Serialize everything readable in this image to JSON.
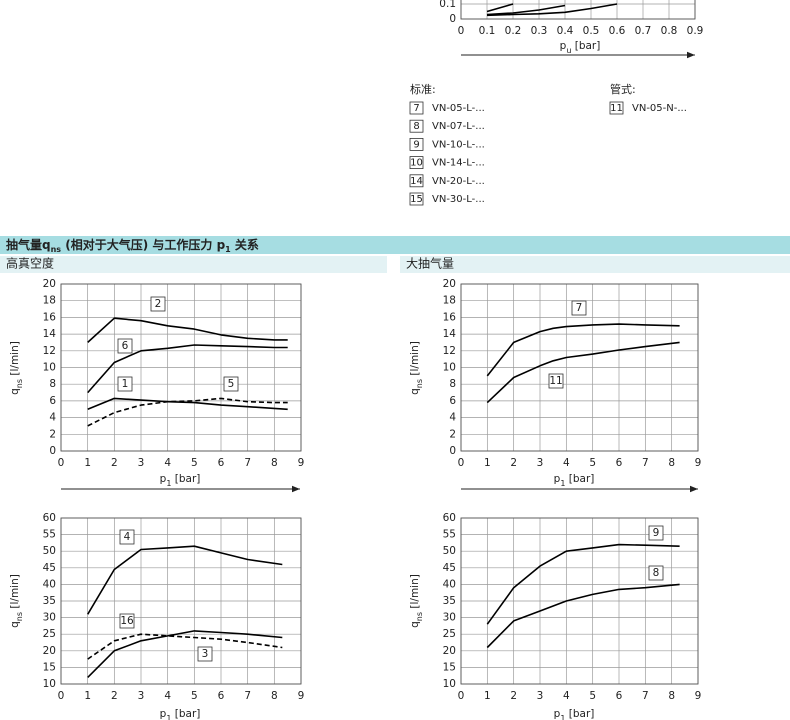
{
  "legend": {
    "standard": {
      "title": "标准:",
      "items": [
        {
          "id": "7",
          "label": "VN-05-L-..."
        },
        {
          "id": "8",
          "label": "VN-07-L-..."
        },
        {
          "id": "9",
          "label": "VN-10-L-..."
        },
        {
          "id": "10",
          "label": "VN-14-L-..."
        },
        {
          "id": "14",
          "label": "VN-20-L-..."
        },
        {
          "id": "15",
          "label": "VN-30-L-..."
        }
      ]
    },
    "tube": {
      "title": "管式:",
      "items": [
        {
          "id": "11",
          "label": "VN-05-N-..."
        }
      ]
    }
  },
  "section": {
    "title": [
      "抽气量q",
      "ns",
      " (相对于大气压) 与工作压力 p",
      "1",
      " 关系"
    ],
    "left": "高真空度",
    "right": "大抽气量"
  },
  "chart_data": [
    {
      "type": "line",
      "x_label": [
        "p",
        "u",
        " [bar]"
      ],
      "x": [
        0.1,
        0.2,
        0.3,
        0.4,
        0.5,
        0.6,
        0.65
      ],
      "xlim": [
        0,
        0.9
      ],
      "xticks": [
        0,
        0.1,
        0.2,
        0.3,
        0.4,
        0.5,
        0.6,
        0.7,
        0.8,
        0.9
      ],
      "ylim": [
        0,
        0.1
      ],
      "yticks": [
        0,
        0.1
      ],
      "grid": true,
      "series": [
        {
          "color": "#000000",
          "values": [
            0.05,
            0.1,
            null,
            null,
            null,
            null,
            null
          ]
        },
        {
          "color": "#000000",
          "values": [
            0.03,
            0.04,
            0.06,
            0.09,
            null,
            null,
            null
          ]
        },
        {
          "color": "#000000",
          "values": [
            0.025,
            0.03,
            0.035,
            0.045,
            0.07,
            0.1,
            null
          ]
        }
      ]
    },
    {
      "type": "line",
      "x_label": [
        "p",
        "1",
        " [bar]"
      ],
      "y_label": [
        "q",
        "ns",
        " [l/min]"
      ],
      "x": [
        1,
        2,
        3,
        4,
        5,
        6,
        7,
        8,
        8.5
      ],
      "xlim": [
        0,
        9
      ],
      "xticks": [
        0,
        1,
        2,
        3,
        4,
        5,
        6,
        7,
        8,
        9
      ],
      "ylim": [
        0,
        20
      ],
      "yticks": [
        0,
        2,
        4,
        6,
        8,
        10,
        12,
        14,
        16,
        18,
        20
      ],
      "grid": true,
      "series": [
        {
          "name": "2",
          "color": "#000000",
          "values": [
            13,
            15.9,
            15.6,
            15,
            14.6,
            13.9,
            13.5,
            13.3,
            13.3
          ]
        },
        {
          "name": "6",
          "color": "#000000",
          "values": [
            7,
            10.6,
            12,
            12.3,
            12.7,
            12.6,
            12.5,
            12.4,
            12.4
          ]
        },
        {
          "name": "1",
          "color": "#000000",
          "values": [
            5,
            6.3,
            6.1,
            5.9,
            5.8,
            5.5,
            5.3,
            5.1,
            5
          ]
        },
        {
          "name": "5",
          "color": "#000000",
          "dash": true,
          "values": [
            3,
            4.6,
            5.5,
            5.9,
            6,
            6.3,
            5.9,
            5.8,
            5.8
          ]
        }
      ]
    },
    {
      "type": "line",
      "x_label": [
        "p",
        "1",
        " [bar]"
      ],
      "y_label": [
        "q",
        "ns",
        " [l/min]"
      ],
      "x": [
        1,
        2,
        3,
        3.5,
        4,
        5,
        6,
        7,
        8.3
      ],
      "xlim": [
        0,
        9
      ],
      "xticks": [
        0,
        1,
        2,
        3,
        4,
        5,
        6,
        7,
        8,
        9
      ],
      "ylim": [
        0,
        20
      ],
      "yticks": [
        0,
        2,
        4,
        6,
        8,
        10,
        12,
        14,
        16,
        18,
        20
      ],
      "grid": true,
      "series": [
        {
          "name": "7",
          "color": "#000000",
          "values": [
            9,
            13,
            14.3,
            14.7,
            14.9,
            15.1,
            15.2,
            15.1,
            15
          ]
        },
        {
          "name": "11",
          "color": "#000000",
          "values": [
            5.8,
            8.8,
            10.2,
            10.8,
            11.2,
            11.6,
            12.1,
            12.5,
            13
          ]
        }
      ]
    },
    {
      "type": "line",
      "x_label": [
        "p",
        "1",
        " [bar]"
      ],
      "y_label": [
        "q",
        "ns",
        " [l/min]"
      ],
      "x": [
        1,
        2,
        3,
        4,
        5,
        6,
        7,
        8.3
      ],
      "xlim": [
        0,
        9
      ],
      "xticks": [
        0,
        1,
        2,
        3,
        4,
        5,
        6,
        7,
        8,
        9
      ],
      "ylim": [
        10,
        60
      ],
      "yticks": [
        10,
        15,
        20,
        25,
        30,
        35,
        40,
        45,
        50,
        55,
        60
      ],
      "grid": true,
      "series": [
        {
          "name": "4",
          "color": "#000000",
          "values": [
            31,
            44.5,
            50.5,
            51,
            51.5,
            49.5,
            47.5,
            46
          ]
        },
        {
          "name": "16",
          "color": "#000000",
          "dash": true,
          "values": [
            17.5,
            23,
            25,
            24.5,
            24,
            23.5,
            22.5,
            21
          ]
        },
        {
          "name": "3",
          "color": "#000000",
          "values": [
            12,
            20,
            23,
            24.5,
            26,
            25.5,
            25,
            24
          ]
        }
      ]
    },
    {
      "type": "line",
      "x_label": [
        "p",
        "1",
        " [bar]"
      ],
      "y_label": [
        "q",
        "ns",
        " [l/min]"
      ],
      "x": [
        1,
        2,
        3,
        4,
        5,
        6,
        7,
        8.3
      ],
      "xlim": [
        0,
        9
      ],
      "xticks": [
        0,
        1,
        2,
        3,
        4,
        5,
        6,
        7,
        8,
        9
      ],
      "ylim": [
        10,
        60
      ],
      "yticks": [
        10,
        15,
        20,
        25,
        30,
        35,
        40,
        45,
        50,
        55,
        60
      ],
      "grid": true,
      "series": [
        {
          "name": "9",
          "color": "#000000",
          "values": [
            28,
            39,
            45.5,
            50,
            51,
            52,
            51.8,
            51.5
          ]
        },
        {
          "name": "8",
          "color": "#000000",
          "values": [
            21,
            29,
            32,
            35,
            37,
            38.5,
            39,
            40
          ]
        }
      ]
    }
  ]
}
